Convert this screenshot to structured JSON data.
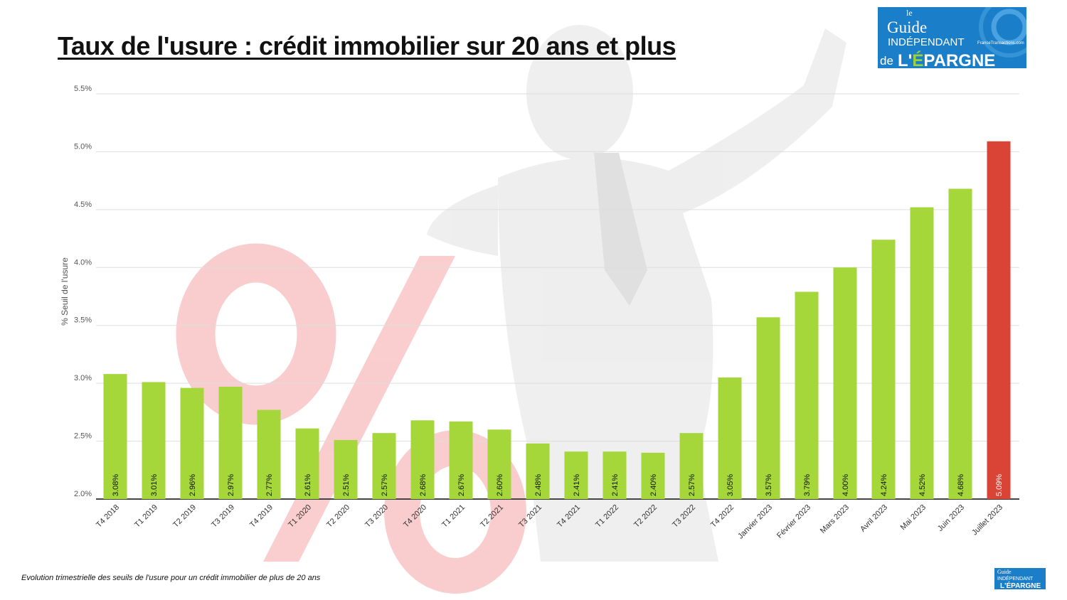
{
  "title": "Taux de l'usure : crédit immobilier sur 20 ans et plus",
  "caption": "Evolution trimestrielle des seuils de l'usure pour un crédit immobilier de plus de 20 ans",
  "logo": {
    "line1": "le",
    "line2": "Guide",
    "line3": "INDÉPENDANT",
    "line4": "de",
    "line5": "L'ÉPARGNE",
    "site": "FranceTransactions.com"
  },
  "colors": {
    "bar": "#a5d63a",
    "highlight": "#d94436",
    "grid": "#dddddd",
    "axis": "#444444",
    "logo_bg": "#1a7fc8"
  },
  "chart_data": {
    "type": "bar",
    "title": "Taux de l'usure : crédit immobilier sur 20 ans et plus",
    "ylabel": "% Seuil de l'usure",
    "xlabel": "",
    "ylim": [
      2.0,
      5.5
    ],
    "yticks": [
      "2.0%",
      "2.5%",
      "3.0%",
      "3.5%",
      "4.0%",
      "4.5%",
      "5.0%",
      "5.5%"
    ],
    "ytick_values": [
      2.0,
      2.5,
      3.0,
      3.5,
      4.0,
      4.5,
      5.0,
      5.5
    ],
    "grid": true,
    "categories": [
      "T4 2018",
      "T1 2019",
      "T2 2019",
      "T3 2019",
      "T4 2019",
      "T1 2020",
      "T2 2020",
      "T3 2020",
      "T4 2020",
      "T1 2021",
      "T2 2021",
      "T3 2021",
      "T4 2021",
      "T1 2022",
      "T2 2022",
      "T3 2022",
      "T4 2022",
      "Janvier 2023",
      "Février 2023",
      "Mars 2023",
      "Avril 2023",
      "Mai 2023",
      "Juin 2023",
      "Juillet 2023"
    ],
    "values": [
      3.08,
      3.01,
      2.96,
      2.97,
      2.77,
      2.61,
      2.51,
      2.57,
      2.68,
      2.67,
      2.6,
      2.48,
      2.41,
      2.41,
      2.4,
      2.57,
      3.05,
      3.57,
      3.79,
      4.0,
      4.24,
      4.52,
      4.68,
      5.09
    ],
    "data_labels": [
      "3.08%",
      "3.01%",
      "2.96%",
      "2.97%",
      "2.77%",
      "2.61%",
      "2.51%",
      "2.57%",
      "2.68%",
      "2.67%",
      "2.60%",
      "2.48%",
      "2.41%",
      "2.41%",
      "2.40%",
      "2.57%",
      "3.05%",
      "3.57%",
      "3.79%",
      "4.00%",
      "4.24%",
      "4.52%",
      "4.68%",
      "5.09%"
    ],
    "highlighted_category": "Juillet 2023"
  }
}
